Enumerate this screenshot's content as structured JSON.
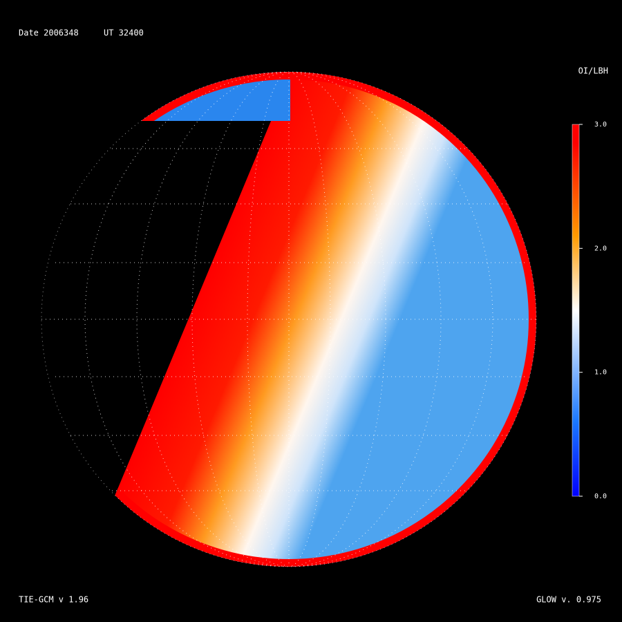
{
  "header": {
    "date": "Date 2006348",
    "ut": "UT 32400"
  },
  "colorbar": {
    "title": "OI/LBH",
    "lim": [
      0,
      3
    ],
    "ticks": [
      {
        "value": 0,
        "label": "0.0"
      },
      {
        "value": 1,
        "label": "1.0"
      },
      {
        "value": 2,
        "label": "2.0"
      },
      {
        "value": 3,
        "label": "3.0"
      }
    ]
  },
  "footer": {
    "left": "TIE-GCM v 1.96",
    "right": "GLOW v. 0.975"
  }
}
